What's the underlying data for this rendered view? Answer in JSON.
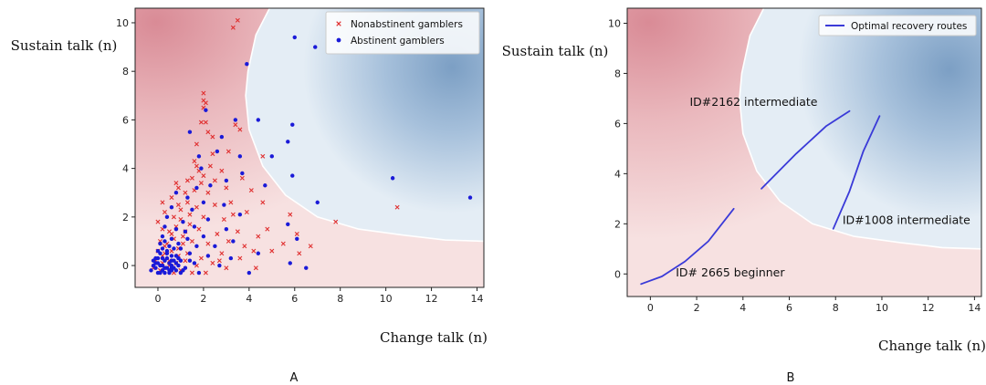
{
  "chart_data": [
    {
      "panel": "A",
      "type": "scatter",
      "xlabel": "Change talk (n)",
      "ylabel": "Sustain talk (n)",
      "xlim": [
        -1.0,
        14.3
      ],
      "ylim": [
        -0.9,
        10.6
      ],
      "xticks": [
        0,
        2,
        4,
        6,
        8,
        10,
        12,
        14
      ],
      "yticks": [
        0,
        2,
        4,
        6,
        8,
        10
      ],
      "grid": false,
      "legend_position": "top-right",
      "background": "decision surface: red region (nonabstinent) left/bottom, blue region (abstinent) upper-right, white boundary curve",
      "boundary": [
        [
          4.9,
          10.6
        ],
        [
          4.3,
          9.5
        ],
        [
          3.95,
          8.0
        ],
        [
          3.85,
          7.0
        ],
        [
          4.0,
          5.6
        ],
        [
          4.6,
          4.1
        ],
        [
          5.6,
          2.9
        ],
        [
          7.0,
          2.0
        ],
        [
          8.8,
          1.5
        ],
        [
          10.8,
          1.25
        ],
        [
          12.6,
          1.05
        ],
        [
          14.3,
          1.0
        ]
      ],
      "series": [
        {
          "name": "Nonabstinent gamblers",
          "marker": "x",
          "color": "#e03030",
          "points": [
            [
              3.3,
              9.8
            ],
            [
              3.5,
              10.1
            ],
            [
              2.0,
              7.1
            ],
            [
              2.0,
              6.8
            ],
            [
              2.1,
              6.7
            ],
            [
              2.0,
              6.5
            ],
            [
              3.4,
              5.8
            ],
            [
              3.6,
              5.6
            ],
            [
              1.9,
              5.9
            ],
            [
              2.1,
              5.9
            ],
            [
              2.2,
              5.5
            ],
            [
              2.4,
              5.3
            ],
            [
              1.7,
              5.0
            ],
            [
              2.4,
              4.6
            ],
            [
              3.1,
              4.7
            ],
            [
              4.6,
              4.5
            ],
            [
              1.6,
              4.3
            ],
            [
              1.7,
              4.1
            ],
            [
              1.8,
              3.9
            ],
            [
              2.0,
              3.7
            ],
            [
              1.3,
              3.5
            ],
            [
              1.5,
              3.6
            ],
            [
              1.9,
              3.4
            ],
            [
              2.5,
              3.5
            ],
            [
              3.7,
              3.6
            ],
            [
              0.9,
              3.2
            ],
            [
              1.2,
              3.0
            ],
            [
              1.6,
              3.1
            ],
            [
              2.2,
              3.0
            ],
            [
              3.0,
              3.2
            ],
            [
              4.1,
              3.1
            ],
            [
              0.6,
              2.8
            ],
            [
              0.9,
              2.5
            ],
            [
              1.3,
              2.6
            ],
            [
              1.7,
              2.4
            ],
            [
              2.5,
              2.5
            ],
            [
              3.2,
              2.6
            ],
            [
              4.6,
              2.6
            ],
            [
              0.3,
              2.2
            ],
            [
              0.7,
              2.0
            ],
            [
              1.0,
              1.9
            ],
            [
              1.4,
              2.1
            ],
            [
              2.0,
              2.0
            ],
            [
              2.9,
              1.9
            ],
            [
              3.9,
              2.2
            ],
            [
              5.8,
              2.1
            ],
            [
              7.8,
              1.8
            ],
            [
              10.5,
              2.4
            ],
            [
              0.2,
              1.5
            ],
            [
              0.5,
              1.4
            ],
            [
              0.8,
              1.6
            ],
            [
              1.2,
              1.4
            ],
            [
              1.8,
              1.5
            ],
            [
              2.6,
              1.3
            ],
            [
              3.5,
              1.4
            ],
            [
              4.8,
              1.5
            ],
            [
              6.1,
              1.3
            ],
            [
              0.1,
              1.0
            ],
            [
              0.4,
              0.9
            ],
            [
              0.7,
              1.1
            ],
            [
              1.1,
              0.9
            ],
            [
              1.5,
              1.0
            ],
            [
              2.2,
              0.9
            ],
            [
              3.1,
              1.0
            ],
            [
              3.8,
              0.8
            ],
            [
              5.5,
              0.9
            ],
            [
              6.7,
              0.8
            ],
            [
              0.0,
              0.6
            ],
            [
              0.3,
              0.5
            ],
            [
              0.6,
              0.6
            ],
            [
              0.9,
              0.4
            ],
            [
              1.3,
              0.5
            ],
            [
              1.9,
              0.3
            ],
            [
              2.8,
              0.5
            ],
            [
              4.2,
              0.6
            ],
            [
              5.0,
              0.6
            ],
            [
              6.2,
              0.5
            ],
            [
              -0.1,
              0.2
            ],
            [
              0.2,
              0.1
            ],
            [
              0.5,
              0.2
            ],
            [
              0.8,
              0.1
            ],
            [
              1.2,
              0.2
            ],
            [
              1.7,
              0.0
            ],
            [
              2.4,
              0.1
            ],
            [
              3.0,
              -0.1
            ],
            [
              4.3,
              -0.1
            ],
            [
              -0.2,
              -0.1
            ],
            [
              0.1,
              -0.2
            ],
            [
              0.4,
              -0.1
            ],
            [
              0.7,
              -0.3
            ],
            [
              1.0,
              -0.2
            ],
            [
              1.5,
              -0.3
            ],
            [
              2.1,
              -0.3
            ],
            [
              0.3,
              0.8
            ],
            [
              0.6,
              1.3
            ],
            [
              0.0,
              1.8
            ],
            [
              0.2,
              2.6
            ],
            [
              1.0,
              2.3
            ],
            [
              0.8,
              3.4
            ],
            [
              2.3,
              4.1
            ],
            [
              2.8,
              3.9
            ],
            [
              3.3,
              2.1
            ],
            [
              4.4,
              1.2
            ],
            [
              0.5,
              0.0
            ],
            [
              0.9,
              0.7
            ],
            [
              1.4,
              1.7
            ],
            [
              2.7,
              0.2
            ],
            [
              3.6,
              0.3
            ],
            [
              1.1,
              1.2
            ],
            [
              0.2,
              0.4
            ]
          ]
        },
        {
          "name": "Abstinent gamblers",
          "marker": "o",
          "color": "#1a1ad8",
          "points": [
            [
              6.0,
              9.4
            ],
            [
              6.9,
              9.0
            ],
            [
              3.9,
              8.3
            ],
            [
              2.1,
              6.4
            ],
            [
              3.4,
              6.0
            ],
            [
              4.4,
              6.0
            ],
            [
              5.9,
              5.8
            ],
            [
              2.8,
              5.3
            ],
            [
              5.7,
              5.1
            ],
            [
              1.4,
              5.5
            ],
            [
              1.8,
              4.5
            ],
            [
              2.6,
              4.7
            ],
            [
              3.6,
              4.5
            ],
            [
              5.0,
              4.5
            ],
            [
              1.9,
              4.0
            ],
            [
              3.7,
              3.8
            ],
            [
              5.9,
              3.7
            ],
            [
              10.3,
              3.6
            ],
            [
              1.7,
              3.2
            ],
            [
              2.3,
              3.3
            ],
            [
              3.0,
              3.5
            ],
            [
              4.7,
              3.3
            ],
            [
              13.7,
              2.8
            ],
            [
              0.8,
              3.0
            ],
            [
              1.3,
              2.8
            ],
            [
              2.0,
              2.6
            ],
            [
              7.0,
              2.6
            ],
            [
              0.6,
              2.4
            ],
            [
              1.5,
              2.3
            ],
            [
              2.9,
              2.5
            ],
            [
              3.6,
              2.1
            ],
            [
              0.4,
              2.0
            ],
            [
              1.1,
              1.8
            ],
            [
              2.2,
              1.9
            ],
            [
              5.7,
              1.7
            ],
            [
              0.3,
              1.6
            ],
            [
              0.8,
              1.5
            ],
            [
              1.6,
              1.6
            ],
            [
              3.0,
              1.5
            ],
            [
              6.1,
              1.1
            ],
            [
              0.2,
              1.2
            ],
            [
              0.6,
              1.1
            ],
            [
              1.3,
              1.1
            ],
            [
              2.0,
              1.2
            ],
            [
              3.3,
              1.0
            ],
            [
              0.1,
              0.9
            ],
            [
              0.5,
              0.8
            ],
            [
              1.0,
              0.7
            ],
            [
              1.7,
              0.8
            ],
            [
              2.5,
              0.8
            ],
            [
              4.4,
              0.5
            ],
            [
              0.0,
              0.6
            ],
            [
              0.4,
              0.5
            ],
            [
              0.8,
              0.4
            ],
            [
              1.4,
              0.5
            ],
            [
              2.2,
              0.4
            ],
            [
              3.2,
              0.3
            ],
            [
              5.8,
              0.1
            ],
            [
              -0.1,
              0.3
            ],
            [
              0.2,
              0.3
            ],
            [
              0.6,
              0.2
            ],
            [
              1.0,
              0.2
            ],
            [
              1.6,
              0.1
            ],
            [
              2.7,
              0.0
            ],
            [
              4.0,
              -0.3
            ],
            [
              6.5,
              -0.1
            ],
            [
              -0.2,
              0.0
            ],
            [
              0.1,
              0.0
            ],
            [
              0.4,
              -0.1
            ],
            [
              0.7,
              -0.1
            ],
            [
              1.1,
              -0.2
            ],
            [
              1.8,
              -0.3
            ],
            [
              -0.3,
              -0.2
            ],
            [
              0.0,
              -0.3
            ],
            [
              0.3,
              -0.3
            ],
            [
              0.6,
              -0.2
            ],
            [
              0.9,
              0.0
            ],
            [
              1.2,
              -0.1
            ],
            [
              -0.1,
              -0.1
            ],
            [
              0.2,
              -0.2
            ],
            [
              0.5,
              0.1
            ],
            [
              0.8,
              0.1
            ],
            [
              0.0,
              0.1
            ],
            [
              0.3,
              0.2
            ],
            [
              0.6,
              0.4
            ],
            [
              0.9,
              0.9
            ],
            [
              1.2,
              1.4
            ],
            [
              0.1,
              -0.3
            ],
            [
              0.4,
              0.6
            ],
            [
              0.7,
              0.7
            ],
            [
              -0.2,
              0.2
            ],
            [
              0.5,
              -0.3
            ],
            [
              1.0,
              -0.3
            ],
            [
              0.2,
              0.7
            ],
            [
              0.3,
              1.0
            ],
            [
              0.0,
              0.3
            ],
            [
              0.6,
              -0.1
            ],
            [
              0.9,
              0.3
            ],
            [
              1.4,
              0.2
            ],
            [
              0.1,
              0.5
            ],
            [
              0.4,
              0.3
            ],
            [
              0.7,
              0.2
            ],
            [
              -0.1,
              0.1
            ],
            [
              0.2,
              0.0
            ],
            [
              0.5,
              -0.2
            ],
            [
              0.8,
              -0.2
            ],
            [
              0.3,
              -0.1
            ],
            [
              0.6,
              0.0
            ]
          ]
        }
      ]
    },
    {
      "panel": "B",
      "type": "line",
      "xlabel": "Change talk (n)",
      "ylabel": "Sustain talk (n)",
      "xlim": [
        -1.0,
        14.3
      ],
      "ylim": [
        -0.9,
        10.6
      ],
      "xticks": [
        0,
        2,
        4,
        6,
        8,
        10,
        12,
        14
      ],
      "yticks": [
        0,
        2,
        4,
        6,
        8,
        10
      ],
      "grid": false,
      "legend_position": "top-right",
      "boundary": [
        [
          4.9,
          10.6
        ],
        [
          4.3,
          9.5
        ],
        [
          3.95,
          8.0
        ],
        [
          3.85,
          7.0
        ],
        [
          4.0,
          5.6
        ],
        [
          4.6,
          4.1
        ],
        [
          5.6,
          2.9
        ],
        [
          7.0,
          2.0
        ],
        [
          8.8,
          1.5
        ],
        [
          10.8,
          1.25
        ],
        [
          12.6,
          1.05
        ],
        [
          14.3,
          1.0
        ]
      ],
      "series": [
        {
          "name": "Optimal recovery routes",
          "color": "#3a3ad8",
          "points": [
            [
              -0.4,
              -0.4
            ],
            [
              0.5,
              -0.1
            ],
            [
              1.5,
              0.5
            ],
            [
              2.5,
              1.3
            ],
            [
              3.6,
              2.6
            ]
          ]
        },
        {
          "name": "",
          "color": "#3a3ad8",
          "points": [
            [
              4.8,
              3.4
            ],
            [
              6.3,
              4.8
            ],
            [
              7.6,
              5.9
            ],
            [
              8.6,
              6.5
            ]
          ]
        },
        {
          "name": "",
          "color": "#3a3ad8",
          "points": [
            [
              7.9,
              1.8
            ],
            [
              8.6,
              3.3
            ],
            [
              9.2,
              4.9
            ],
            [
              9.9,
              6.3
            ]
          ]
        }
      ],
      "annotations": [
        {
          "text": "ID#2162 intermediate",
          "x": 1.7,
          "y": 6.7
        },
        {
          "text": "ID#1008 intermediate",
          "x": 8.3,
          "y": 2.0
        },
        {
          "text": "ID# 2665 beginner",
          "x": 1.1,
          "y": -0.1
        }
      ]
    }
  ],
  "panel_labels": [
    "A",
    "B"
  ]
}
